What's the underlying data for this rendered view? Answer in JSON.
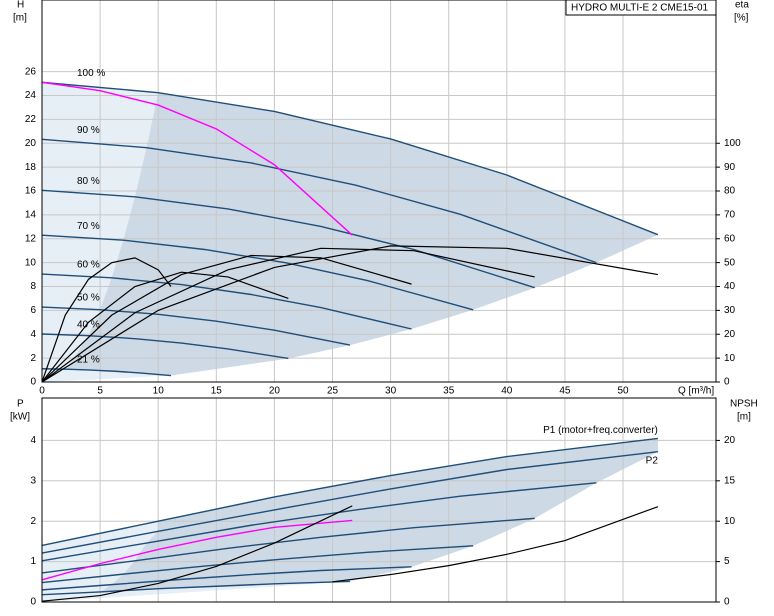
{
  "chart_data": [
    {
      "type": "line",
      "title": "HYDRO MULTI-E 2 CME15-01",
      "x_label": "Q [m³/h]",
      "y_label": "H",
      "y_unit": "[m]",
      "y2_label": "eta",
      "y2_unit": "[%]",
      "xlim": [
        0,
        58
      ],
      "xticks": [
        0,
        5,
        10,
        15,
        20,
        25,
        30,
        35,
        40,
        45,
        50
      ],
      "ylim": [
        0,
        32
      ],
      "yticks": [
        0,
        2,
        4,
        6,
        8,
        10,
        12,
        14,
        16,
        18,
        20,
        22,
        24,
        26
      ],
      "y2lim": [
        0,
        160
      ],
      "y2ticks": [
        0,
        10,
        20,
        30,
        40,
        50,
        60,
        70,
        80,
        90,
        100
      ],
      "grid": true,
      "shade": "#cdd9e5",
      "series": [
        {
          "name": "100 %",
          "color": "#1f4e79",
          "x": [
            0,
            10,
            20,
            30,
            40,
            53
          ],
          "values": [
            25.1,
            24.24,
            22.66,
            20.36,
            17.34,
            12.34
          ]
        },
        {
          "name": "90 %",
          "color": "#1f4e79",
          "x": [
            0,
            9,
            18,
            27,
            36,
            47.7
          ],
          "values": [
            20.33,
            19.63,
            18.35,
            16.49,
            14.05,
            10.0
          ]
        },
        {
          "name": "80 %",
          "color": "#1f4e79",
          "x": [
            0,
            8,
            16,
            24,
            32,
            42.4
          ],
          "values": [
            16.06,
            15.51,
            14.5,
            13.03,
            11.1,
            7.9
          ]
        },
        {
          "name": "70 %",
          "color": "#1f4e79",
          "x": [
            0,
            7,
            14,
            21,
            28,
            37.1
          ],
          "values": [
            12.3,
            11.88,
            11.1,
            9.98,
            8.5,
            6.05
          ]
        },
        {
          "name": "60 %",
          "color": "#1f4e79",
          "x": [
            0,
            6,
            12,
            18,
            24,
            31.8
          ],
          "values": [
            9.04,
            8.73,
            8.16,
            7.33,
            6.24,
            4.44
          ]
        },
        {
          "name": "50 %",
          "color": "#1f4e79",
          "x": [
            0,
            5,
            10,
            15,
            20,
            26.5
          ],
          "values": [
            6.28,
            6.06,
            5.67,
            5.09,
            4.34,
            3.09
          ]
        },
        {
          "name": "40 %",
          "color": "#1f4e79",
          "x": [
            0,
            4,
            8,
            12,
            16,
            21.2
          ],
          "values": [
            4.02,
            3.88,
            3.63,
            3.26,
            2.77,
            1.97
          ]
        },
        {
          "name": "21 %",
          "color": "#1f4e79",
          "x": [
            0,
            2.1,
            4.2,
            6.3,
            8.4,
            11.1
          ],
          "values": [
            1.11,
            1.07,
            1.0,
            0.9,
            0.76,
            0.54
          ]
        },
        {
          "color": "#ff00ff",
          "x": [
            0,
            5,
            10,
            15,
            20,
            26.7
          ],
          "values": [
            25.1,
            24.4,
            23.2,
            21.2,
            18.2,
            12.3
          ]
        },
        {
          "color": "#000000",
          "axis": "y2",
          "x": [
            0,
            10,
            20,
            30,
            40,
            53
          ],
          "values": [
            0,
            30,
            48,
            57,
            56,
            45
          ]
        },
        {
          "color": "#000000",
          "axis": "y2",
          "x": [
            0,
            8,
            16,
            24,
            32,
            42.4
          ],
          "values": [
            0,
            29,
            47,
            56,
            55,
            44
          ]
        },
        {
          "color": "#000000",
          "axis": "y2",
          "x": [
            0,
            6,
            12,
            18,
            24,
            31.8
          ],
          "values": [
            0,
            28,
            45,
            53,
            52,
            41
          ]
        },
        {
          "color": "#000000",
          "axis": "y2",
          "x": [
            0,
            4,
            8,
            12,
            16,
            21.2
          ],
          "values": [
            0,
            25,
            40,
            46,
            44,
            35
          ]
        },
        {
          "color": "#000000",
          "axis": "y2",
          "x": [
            0,
            2,
            4,
            6,
            8,
            10,
            11.1
          ],
          "values": [
            0,
            28,
            43,
            50,
            52,
            47,
            40
          ]
        }
      ]
    },
    {
      "type": "line",
      "y_label": "P",
      "y_unit": "[kW]",
      "y2_label": "NPSH",
      "y2_unit": "[m]",
      "xlim": [
        0,
        58
      ],
      "ylim": [
        0,
        5.05
      ],
      "yticks": [
        0,
        1,
        2,
        3,
        4
      ],
      "y2lim": [
        0,
        25.25
      ],
      "y2ticks": [
        0,
        5,
        10,
        15,
        20
      ],
      "grid": true,
      "shade": "#cdd9e5",
      "series": [
        {
          "name": "P1 (motor+freq.converter)",
          "color": "#1f4e79",
          "x": [
            0,
            10,
            20,
            30,
            40,
            53
          ],
          "values": [
            1.4,
            2.0,
            2.6,
            3.13,
            3.6,
            4.05
          ]
        },
        {
          "name": "P2",
          "color": "#1f4e79",
          "x": [
            0,
            10,
            20,
            30,
            40,
            53
          ],
          "values": [
            1.21,
            1.75,
            2.28,
            2.8,
            3.28,
            3.72
          ]
        },
        {
          "color": "#1f4e79",
          "x": [
            0,
            9,
            18,
            27,
            36,
            47.7
          ],
          "values": [
            1.02,
            1.46,
            1.9,
            2.28,
            2.62,
            2.95
          ]
        },
        {
          "color": "#1f4e79",
          "x": [
            0,
            8,
            16,
            24,
            32,
            42.4
          ],
          "values": [
            0.72,
            1.02,
            1.33,
            1.6,
            1.84,
            2.07
          ]
        },
        {
          "color": "#1f4e79",
          "x": [
            0,
            7,
            14,
            21,
            28,
            37.1
          ],
          "values": [
            0.48,
            0.69,
            0.89,
            1.07,
            1.23,
            1.39
          ]
        },
        {
          "color": "#1f4e79",
          "x": [
            0,
            6,
            12,
            18,
            24,
            31.8
          ],
          "values": [
            0.3,
            0.43,
            0.56,
            0.68,
            0.78,
            0.87
          ]
        },
        {
          "color": "#1f4e79",
          "x": [
            0,
            5,
            10,
            15,
            20,
            26.5
          ],
          "values": [
            0.18,
            0.25,
            0.33,
            0.39,
            0.45,
            0.51
          ]
        },
        {
          "color": "#ff00ff",
          "x": [
            0,
            5,
            10,
            15,
            20,
            26.7
          ],
          "values": [
            0.55,
            0.95,
            1.3,
            1.6,
            1.85,
            2.02
          ]
        },
        {
          "color": "#000000",
          "axis": "y2",
          "x": [
            25,
            30,
            35,
            40,
            45,
            53
          ],
          "values": [
            2.5,
            3.4,
            4.5,
            5.9,
            7.6,
            11.8
          ]
        },
        {
          "color": "#000000",
          "axis": "y2",
          "x": [
            0,
            5,
            10,
            15,
            20,
            26.7
          ],
          "values": [
            0.1,
            0.8,
            2.3,
            4.4,
            7.3,
            11.9
          ]
        }
      ]
    }
  ]
}
